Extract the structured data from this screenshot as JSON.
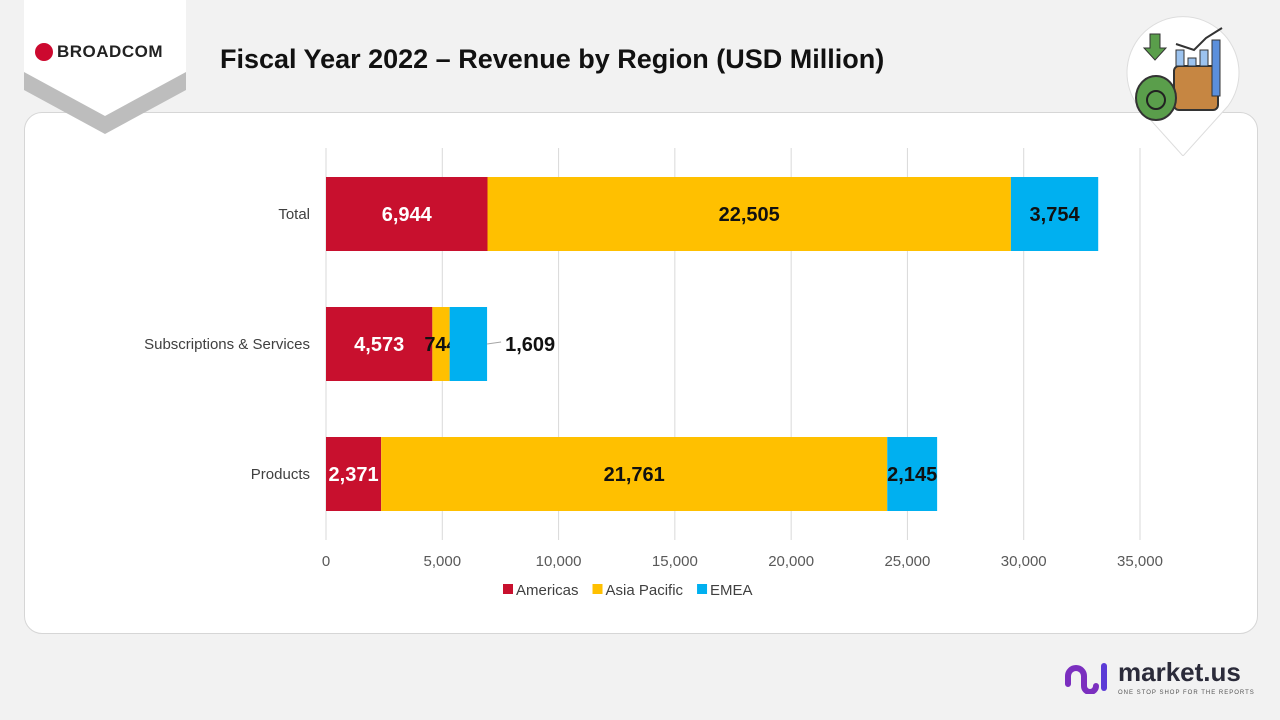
{
  "header": {
    "title": "Fiscal Year 2022 – Revenue  by Region (USD Million)",
    "brand_logo": "BROADCOM"
  },
  "footer": {
    "logo": "market.us",
    "tagline": "ONE STOP SHOP FOR THE REPORTS"
  },
  "chart_data": {
    "type": "bar",
    "orientation": "horizontal",
    "stacked": true,
    "title": "Fiscal Year 2022 – Revenue  by Region (USD Million)",
    "categories": [
      "Total",
      "Subscriptions & Services",
      "Products"
    ],
    "series": [
      {
        "name": "Americas",
        "color": "#c8102e",
        "values": [
          6944,
          4573,
          2371
        ],
        "labels": [
          "6,944",
          "4,573",
          "2,371"
        ]
      },
      {
        "name": "Asia Pacific",
        "color": "#ffc000",
        "values": [
          22505,
          744,
          21761
        ],
        "labels": [
          "22,505",
          "744",
          "21,761"
        ]
      },
      {
        "name": "EMEA",
        "color": "#00b0f0",
        "values": [
          3754,
          1609,
          2145
        ],
        "labels": [
          "3,754",
          "1,609",
          "2,145"
        ]
      }
    ],
    "xlim": [
      0,
      35000
    ],
    "xticks": [
      0,
      5000,
      10000,
      15000,
      20000,
      25000,
      30000,
      35000
    ],
    "xtick_labels": [
      "0",
      "5,000",
      "10,000",
      "15,000",
      "20,000",
      "25,000",
      "30,000",
      "35,000"
    ],
    "grid": true,
    "legend": "bottom"
  }
}
